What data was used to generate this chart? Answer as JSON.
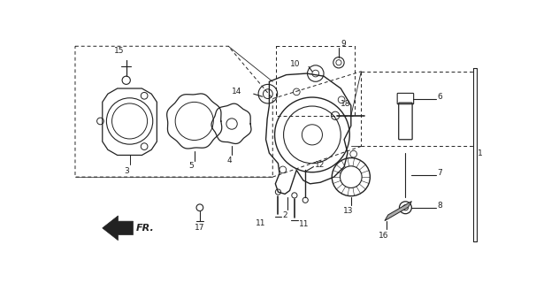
{
  "bg_color": "#ffffff",
  "line_color": "#222222",
  "fig_width": 6.06,
  "fig_height": 3.2,
  "dpi": 100
}
